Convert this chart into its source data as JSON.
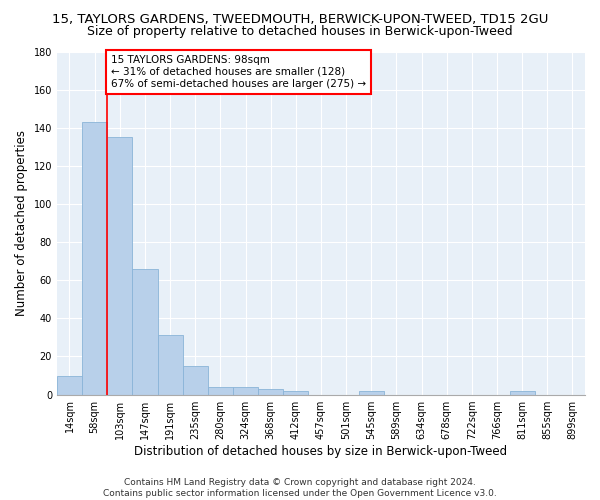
{
  "title1": "15, TAYLORS GARDENS, TWEEDMOUTH, BERWICK-UPON-TWEED, TD15 2GU",
  "title2": "Size of property relative to detached houses in Berwick-upon-Tweed",
  "xlabel": "Distribution of detached houses by size in Berwick-upon-Tweed",
  "ylabel": "Number of detached properties",
  "footer1": "Contains HM Land Registry data © Crown copyright and database right 2024.",
  "footer2": "Contains public sector information licensed under the Open Government Licence v3.0.",
  "bins": [
    "14sqm",
    "58sqm",
    "103sqm",
    "147sqm",
    "191sqm",
    "235sqm",
    "280sqm",
    "324sqm",
    "368sqm",
    "412sqm",
    "457sqm",
    "501sqm",
    "545sqm",
    "589sqm",
    "634sqm",
    "678sqm",
    "722sqm",
    "766sqm",
    "811sqm",
    "855sqm",
    "899sqm"
  ],
  "values": [
    10,
    143,
    135,
    66,
    31,
    15,
    4,
    4,
    3,
    2,
    0,
    0,
    2,
    0,
    0,
    0,
    0,
    0,
    2,
    0,
    0
  ],
  "bar_color": "#b8d0ea",
  "bar_edge_color": "#8ab4d8",
  "annotation_text": "15 TAYLORS GARDENS: 98sqm\n← 31% of detached houses are smaller (128)\n67% of semi-detached houses are larger (275) →",
  "annotation_box_color": "white",
  "annotation_box_edge_color": "red",
  "vline_color": "red",
  "vline_x_index": 2,
  "ylim": [
    0,
    180
  ],
  "yticks": [
    0,
    20,
    40,
    60,
    80,
    100,
    120,
    140,
    160,
    180
  ],
  "background_color": "#e8f0f8",
  "grid_color": "white",
  "title1_fontsize": 9.5,
  "title2_fontsize": 9,
  "xlabel_fontsize": 8.5,
  "ylabel_fontsize": 8.5,
  "tick_fontsize": 7,
  "footer_fontsize": 6.5,
  "annotation_fontsize": 7.5
}
